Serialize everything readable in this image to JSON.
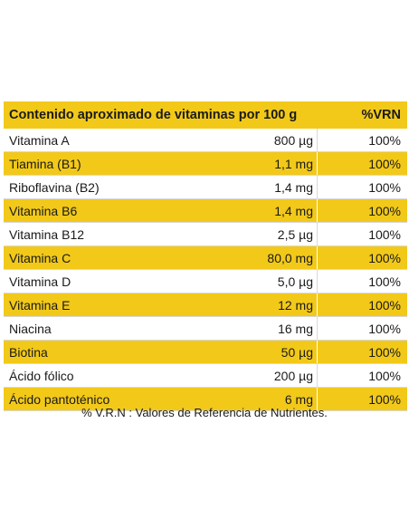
{
  "table": {
    "header": {
      "name": "Contenido aproximado de vitaminas por 100 g",
      "vrn": "%VRN"
    },
    "rows": [
      {
        "name": "Vitamina A",
        "amount": "800 µg",
        "vrn": "100%"
      },
      {
        "name": "Tiamina (B1)",
        "amount": "1,1 mg",
        "vrn": "100%"
      },
      {
        "name": "Riboflavina (B2)",
        "amount": "1,4 mg",
        "vrn": "100%"
      },
      {
        "name": "Vitamina B6",
        "amount": "1,4 mg",
        "vrn": "100%"
      },
      {
        "name": "Vitamina B12",
        "amount": "2,5 µg",
        "vrn": "100%"
      },
      {
        "name": "Vitamina C",
        "amount": "80,0 mg",
        "vrn": "100%"
      },
      {
        "name": "Vitamina D",
        "amount": "5,0 µg",
        "vrn": "100%"
      },
      {
        "name": "Vitamina E",
        "amount": "12 mg",
        "vrn": "100%"
      },
      {
        "name": "Niacina",
        "amount": "16 mg",
        "vrn": "100%"
      },
      {
        "name": "Biotina",
        "amount": "50 µg",
        "vrn": "100%"
      },
      {
        "name": "Ácido fólico",
        "amount": "200 µg",
        "vrn": "100%"
      },
      {
        "name": "Ácido pantoténico",
        "amount": "6 mg",
        "vrn": "100%"
      }
    ],
    "footnote": "% V.R.N : Valores de Referencia de Nutrientes."
  },
  "colors": {
    "highlight": "#f2c919",
    "text": "#1a1a1a",
    "background": "#ffffff"
  }
}
